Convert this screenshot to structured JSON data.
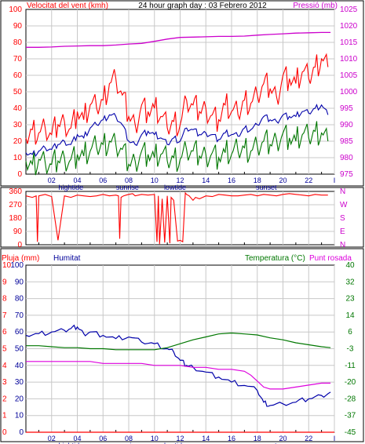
{
  "colors": {
    "wind": "#ff0000",
    "wind_dir": "#ff0000",
    "pressure": "#cc00cc",
    "rain": "#ff0000",
    "humidity": "#0000aa",
    "temperature": "#007700",
    "dewpoint": "#dd00dd",
    "grid": "#c8c8c8",
    "axis": "#000000",
    "blue": "#000099"
  },
  "hour_ticks": [
    "02",
    "04",
    "06",
    "08",
    "10",
    "12",
    "14",
    "16",
    "18",
    "20",
    "22",
    "I"
  ],
  "events": [
    {
      "label": "hightide",
      "hour": 3.5
    },
    {
      "label": "sunrise",
      "hour": 7.9
    },
    {
      "label": "lowtide",
      "hour": 11.6
    },
    {
      "label": "sunset",
      "hour": 18.7
    }
  ],
  "chart_data": [
    {
      "type": "line",
      "title": "24 hour graph day : 03 Febrero 2012",
      "left_label": "Velocitat del vent (kmh)",
      "right_label": "Pressió (mb)",
      "left_ticks": [
        "0",
        "10",
        "20",
        "30",
        "40",
        "50",
        "60",
        "70",
        "80",
        "90",
        "100"
      ],
      "right_ticks": [
        "975",
        "980",
        "985",
        "990",
        "995",
        "1000",
        "1005",
        "1010",
        "1015",
        "1020",
        "1025"
      ],
      "ylim": [
        0,
        100
      ],
      "y2lim": [
        975,
        1025
      ],
      "xlim": [
        0,
        24
      ],
      "series": [
        {
          "name": "gust",
          "axis": "left",
          "color": "#ff0000",
          "x": [
            0,
            0.5,
            1,
            1.5,
            2,
            2.5,
            3,
            3.5,
            4,
            4.5,
            5,
            5.5,
            6,
            6.5,
            7,
            7.5,
            8,
            8.5,
            9,
            9.5,
            10,
            10.5,
            11,
            11.5,
            12,
            12.5,
            13,
            13.5,
            14,
            14.5,
            15,
            15.5,
            16,
            16.5,
            17,
            17.5,
            18,
            18.5,
            19,
            19.5,
            20,
            20.5,
            21,
            21.5,
            22,
            22.5,
            23,
            23.5
          ],
          "y": [
            22,
            27,
            25,
            28,
            24,
            30,
            32,
            28,
            38,
            33,
            42,
            40,
            45,
            55,
            58,
            48,
            35,
            30,
            42,
            38,
            40,
            35,
            28,
            32,
            30,
            45,
            42,
            38,
            40,
            36,
            33,
            42,
            38,
            36,
            45,
            43,
            48,
            55,
            52,
            47,
            60,
            58,
            55,
            62,
            58,
            65,
            70,
            65
          ]
        },
        {
          "name": "mean",
          "axis": "left",
          "color": "#0000aa",
          "x": [
            0,
            0.5,
            1,
            1.5,
            2,
            2.5,
            3,
            3.5,
            4,
            4.5,
            5,
            5.5,
            6,
            6.5,
            7,
            7.5,
            8,
            8.5,
            9,
            9.5,
            10,
            10.5,
            11,
            11.5,
            12,
            12.5,
            13,
            13.5,
            14,
            14.5,
            15,
            15.5,
            16,
            16.5,
            17,
            17.5,
            18,
            18.5,
            19,
            19.5,
            20,
            20.5,
            21,
            21.5,
            22,
            22.5,
            23,
            23.5
          ],
          "y": [
            13,
            12,
            14,
            16,
            15,
            18,
            20,
            18,
            24,
            22,
            28,
            30,
            33,
            36,
            35,
            30,
            20,
            18,
            24,
            26,
            24,
            22,
            18,
            22,
            20,
            28,
            27,
            24,
            25,
            24,
            21,
            25,
            24,
            23,
            28,
            27,
            30,
            35,
            33,
            32,
            36,
            35,
            35,
            38,
            37,
            40,
            42,
            36
          ]
        },
        {
          "name": "wind-low",
          "axis": "left",
          "color": "#007700",
          "x": [
            0,
            0.5,
            1,
            1.5,
            2,
            2.5,
            3,
            3.5,
            4,
            4.5,
            5,
            5.5,
            6,
            6.5,
            7,
            7.5,
            8,
            8.5,
            9,
            9.5,
            10,
            10.5,
            11,
            11.5,
            12,
            12.5,
            13,
            13.5,
            14,
            14.5,
            15,
            15.5,
            16,
            16.5,
            17,
            17.5,
            18,
            18.5,
            19,
            19.5,
            20,
            20.5,
            21,
            21.5,
            22,
            22.5,
            23,
            23.5
          ],
          "y": [
            8,
            6,
            9,
            7,
            6,
            8,
            10,
            9,
            12,
            11,
            14,
            16,
            18,
            20,
            18,
            15,
            6,
            8,
            14,
            12,
            10,
            12,
            8,
            10,
            9,
            15,
            14,
            11,
            12,
            13,
            10,
            13,
            12,
            14,
            16,
            14,
            17,
            20,
            18,
            21,
            25,
            22,
            20,
            24,
            22,
            26,
            25,
            20
          ]
        },
        {
          "name": "pressure",
          "axis": "right",
          "color": "#cc00cc",
          "x": [
            0,
            1,
            2,
            3,
            4,
            5,
            6,
            7,
            8,
            9,
            10,
            11,
            12,
            13,
            14,
            15,
            16,
            17,
            18,
            19,
            20,
            21,
            22,
            23,
            23.7
          ],
          "y": [
            1013.5,
            1013.5,
            1013.6,
            1013.8,
            1013.9,
            1014.0,
            1014.0,
            1014.2,
            1014.5,
            1014.7,
            1015.3,
            1016.0,
            1016.5,
            1016.6,
            1016.7,
            1016.8,
            1016.8,
            1016.9,
            1017.2,
            1017.4,
            1017.6,
            1017.8,
            1017.9,
            1018.0,
            1018.0
          ]
        }
      ]
    },
    {
      "type": "line",
      "left_ticks": [
        "360",
        "270",
        "180",
        "90",
        "0"
      ],
      "right_ticks": [
        "N",
        "W",
        "S",
        "E",
        "N"
      ],
      "ylim": [
        0,
        360
      ],
      "xlim": [
        0,
        24
      ],
      "series": [
        {
          "name": "direction",
          "color": "#ff0000",
          "x": [
            0,
            0.5,
            0.8,
            0.9,
            1,
            1.5,
            2,
            2.5,
            3,
            3.5,
            4,
            4.5,
            5,
            5.5,
            6,
            6.5,
            7,
            7.2,
            7.3,
            7.4,
            7.6,
            7.8,
            8,
            8.3,
            8.5,
            9,
            9.5,
            10,
            10.2,
            10.3,
            10.4,
            10.6,
            10.8,
            11,
            11.2,
            11.3,
            11.5,
            11.8,
            12,
            12.2,
            12.4,
            12.5,
            12.7,
            13,
            13.2,
            13.5,
            14,
            14.5,
            15,
            15.5,
            16,
            16.5,
            17,
            17.5,
            18,
            18.5,
            19,
            19.5,
            20,
            20.5,
            21,
            21.5,
            22,
            22.5,
            23,
            23.5
          ],
          "y": [
            330,
            320,
            330,
            20,
            330,
            340,
            325,
            30,
            330,
            320,
            335,
            330,
            325,
            330,
            340,
            330,
            335,
            330,
            40,
            320,
            330,
            335,
            340,
            345,
            330,
            340,
            335,
            340,
            20,
            330,
            5,
            310,
            15,
            330,
            10,
            320,
            300,
            25,
            30,
            20,
            350,
            340,
            330,
            300,
            320,
            310,
            330,
            325,
            340,
            335,
            330,
            330,
            335,
            340,
            330,
            340,
            335,
            330,
            340,
            345,
            340,
            335,
            330,
            340,
            335,
            335
          ]
        }
      ]
    },
    {
      "type": "line",
      "left_label": "Pluja (mm)",
      "humidity_label": "Humitat",
      "right_label": "Temperatura (°C)",
      "dew_label": "Punt rosada",
      "rain_ticks": [
        "0",
        "1",
        "2",
        "3",
        "4",
        "5",
        "6",
        "7",
        "8",
        "9",
        "10"
      ],
      "humidity_ticks": [
        "0",
        "10",
        "20",
        "30",
        "40",
        "50",
        "60",
        "70",
        "80",
        "90",
        "100"
      ],
      "right_ticks": [
        "-45",
        "-37",
        "-28",
        "-20",
        "-11",
        "-3",
        "6",
        "14",
        "23",
        "32",
        "40"
      ],
      "ylim": [
        0,
        100
      ],
      "y2lim": [
        -45,
        40
      ],
      "xlim": [
        0,
        24
      ],
      "series": [
        {
          "name": "rain",
          "axis": "left",
          "color": "#ff0000",
          "x": [
            0,
            24
          ],
          "y": [
            0,
            0
          ]
        },
        {
          "name": "humidity",
          "axis": "left",
          "color": "#0000aa",
          "x": [
            0,
            1,
            2,
            3,
            3.5,
            4,
            4.5,
            5,
            6,
            7,
            8,
            9,
            10,
            11,
            11.5,
            12,
            12.5,
            13,
            14,
            15,
            16,
            17,
            18,
            18.5,
            19,
            20,
            21,
            22,
            23,
            23.7
          ],
          "y": [
            58,
            59,
            60,
            61,
            62,
            63,
            59,
            60,
            58,
            56,
            57,
            54,
            53,
            50,
            48,
            43,
            40,
            39,
            36,
            33,
            30,
            28,
            25,
            18,
            16,
            17,
            18,
            20,
            22,
            24
          ]
        },
        {
          "name": "temperature",
          "axis": "right",
          "color": "#007700",
          "x": [
            0,
            1,
            2,
            3,
            4,
            5,
            6,
            7,
            8,
            9,
            10,
            11,
            12,
            13,
            14,
            15,
            16,
            17,
            18,
            19,
            20,
            21,
            22,
            23,
            23.7
          ],
          "y": [
            -1,
            -1,
            -1.5,
            -2,
            -2,
            -2.5,
            -2.5,
            -3,
            -3,
            -3,
            -3,
            -2,
            0,
            2,
            3.5,
            5,
            5.5,
            5,
            4.5,
            3,
            2,
            0.5,
            -0.5,
            -1.5,
            -2
          ]
        },
        {
          "name": "dewpoint",
          "axis": "right",
          "color": "#dd00dd",
          "x": [
            0,
            1,
            2,
            3,
            4,
            5,
            6,
            7,
            8,
            9,
            10,
            11,
            12,
            13,
            14,
            15,
            16,
            17,
            17.5,
            18,
            18.5,
            19,
            20,
            21,
            22,
            23,
            23.7
          ],
          "y": [
            -9,
            -9,
            -9,
            -9,
            -9,
            -9,
            -10,
            -10,
            -10,
            -10,
            -11,
            -11,
            -11,
            -12,
            -12,
            -13,
            -13,
            -14,
            -16,
            -19,
            -22,
            -23,
            -23,
            -22,
            -21,
            -20,
            -20
          ]
        }
      ]
    }
  ]
}
